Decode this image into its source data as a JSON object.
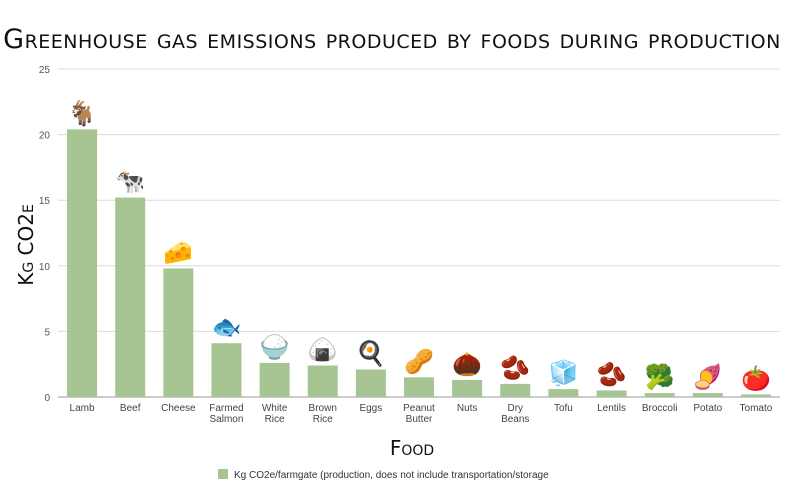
{
  "chart_data": {
    "type": "bar",
    "title": "Greenhouse gas emissions produced by foods during production",
    "xlabel": "Food",
    "ylabel": "Kg CO2e",
    "ylim": [
      0,
      25
    ],
    "yticks": [
      0,
      5,
      10,
      15,
      20,
      25
    ],
    "grid": true,
    "legend_position": "bottom",
    "bar_color": "#a7c593",
    "categories": [
      [
        "Lamb"
      ],
      [
        "Beef"
      ],
      [
        "Cheese"
      ],
      [
        "Farmed",
        "Salmon"
      ],
      [
        "White",
        "Rice"
      ],
      [
        "Brown",
        "Rice"
      ],
      [
        "Eggs"
      ],
      [
        "Peanut",
        "Butter"
      ],
      [
        "Nuts"
      ],
      [
        "Dry",
        "Beans"
      ],
      [
        "Tofu"
      ],
      [
        "Lentils"
      ],
      [
        "Broccoli"
      ],
      [
        "Potato"
      ],
      [
        "Tomato"
      ]
    ],
    "icons": [
      "goat-icon",
      "cow-icon",
      "cheese-icon",
      "fish-icon",
      "rice-bowl-icon",
      "rice-ball-icon",
      "fried-egg-icon",
      "peanuts-icon",
      "chestnut-icon",
      "beans-icon",
      "tofu-icon",
      "lentil-icon",
      "broccoli-icon",
      "sweet-potato-icon",
      "tomato-icon"
    ],
    "icon_glyphs": [
      "🐐",
      "🐄",
      "🧀",
      "🐟",
      "🍚",
      "🍙",
      "🍳",
      "🥜",
      "🌰",
      "🫘",
      "🧊",
      "🫘",
      "🥦",
      "🍠",
      "🍅"
    ],
    "series": [
      {
        "name": "Kg CO2e/farmgate (production, does not include transportation/storage",
        "values": [
          20.4,
          15.2,
          9.8,
          4.1,
          2.6,
          2.4,
          2.1,
          1.5,
          1.3,
          1.0,
          0.6,
          0.5,
          0.3,
          0.3,
          0.2
        ]
      }
    ]
  }
}
